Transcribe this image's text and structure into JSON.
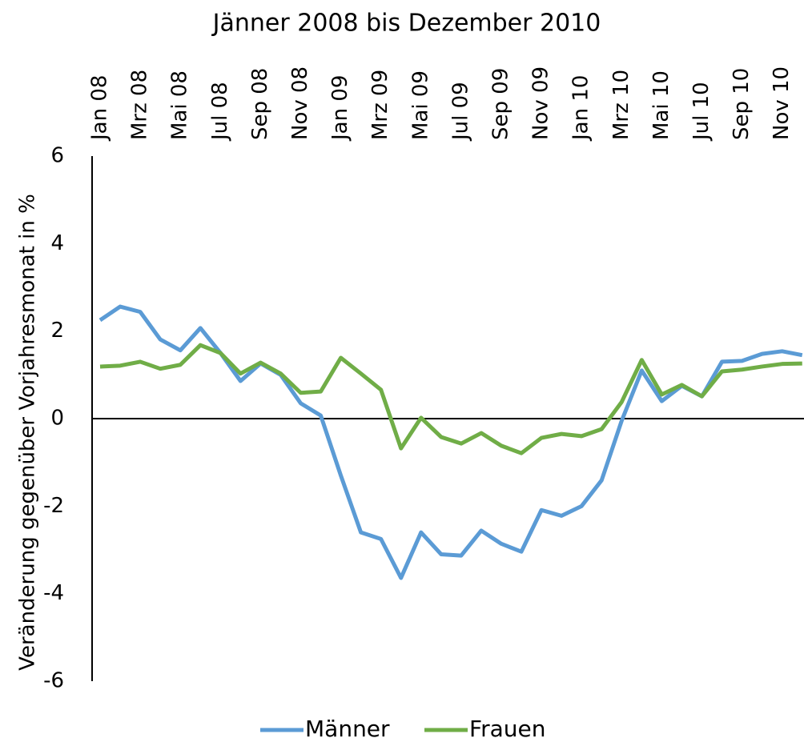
{
  "chart_data": {
    "type": "line",
    "title": "Jänner 2008 bis Dezember 2010",
    "y_label": "Veränderung gegenüber Vorjahresmonat in %",
    "categories": [
      "Jan 08",
      null,
      "Mrz 08",
      null,
      "Mai 08",
      null,
      "Jul 08",
      null,
      "Sep 08",
      null,
      "Nov 08",
      null,
      "Jan 09",
      null,
      "Mrz 09",
      null,
      "Mai 09",
      null,
      "Jul 09",
      null,
      "Sep 09",
      null,
      "Nov 09",
      null,
      "Jan 10",
      null,
      "Mrz 10",
      null,
      "Mai 10",
      null,
      "Jul 10",
      null,
      "Sep 10",
      null,
      "Nov 10",
      null
    ],
    "series": [
      {
        "name": "Männer",
        "color": "#5b9bd5",
        "values": [
          2.25,
          2.56,
          2.44,
          1.81,
          1.56,
          2.07,
          1.5,
          0.86,
          1.26,
          1.0,
          0.35,
          0.07,
          -1.3,
          -2.6,
          -2.75,
          -3.64,
          -2.6,
          -3.1,
          -3.13,
          -2.56,
          -2.86,
          -3.04,
          -2.09,
          -2.22,
          -2.0,
          -1.41,
          -0.05,
          1.1,
          0.4,
          0.75,
          0.51,
          1.3,
          1.32,
          1.48,
          1.54,
          1.45
        ]
      },
      {
        "name": "Frauen",
        "color": "#70ad47",
        "values": [
          1.19,
          1.21,
          1.3,
          1.14,
          1.23,
          1.68,
          1.5,
          1.03,
          1.28,
          1.03,
          0.59,
          0.62,
          1.39,
          1.03,
          0.66,
          -0.68,
          0.02,
          -0.42,
          -0.57,
          -0.33,
          -0.62,
          -0.79,
          -0.44,
          -0.35,
          -0.4,
          -0.24,
          0.38,
          1.34,
          0.55,
          0.77,
          0.51,
          1.08,
          1.12,
          1.19,
          1.25,
          1.26
        ]
      }
    ],
    "ylim": [
      -6,
      6
    ],
    "yticks": [
      -6,
      -4,
      -2,
      0,
      2,
      4,
      6
    ],
    "grid": false,
    "legend": "bottom"
  }
}
